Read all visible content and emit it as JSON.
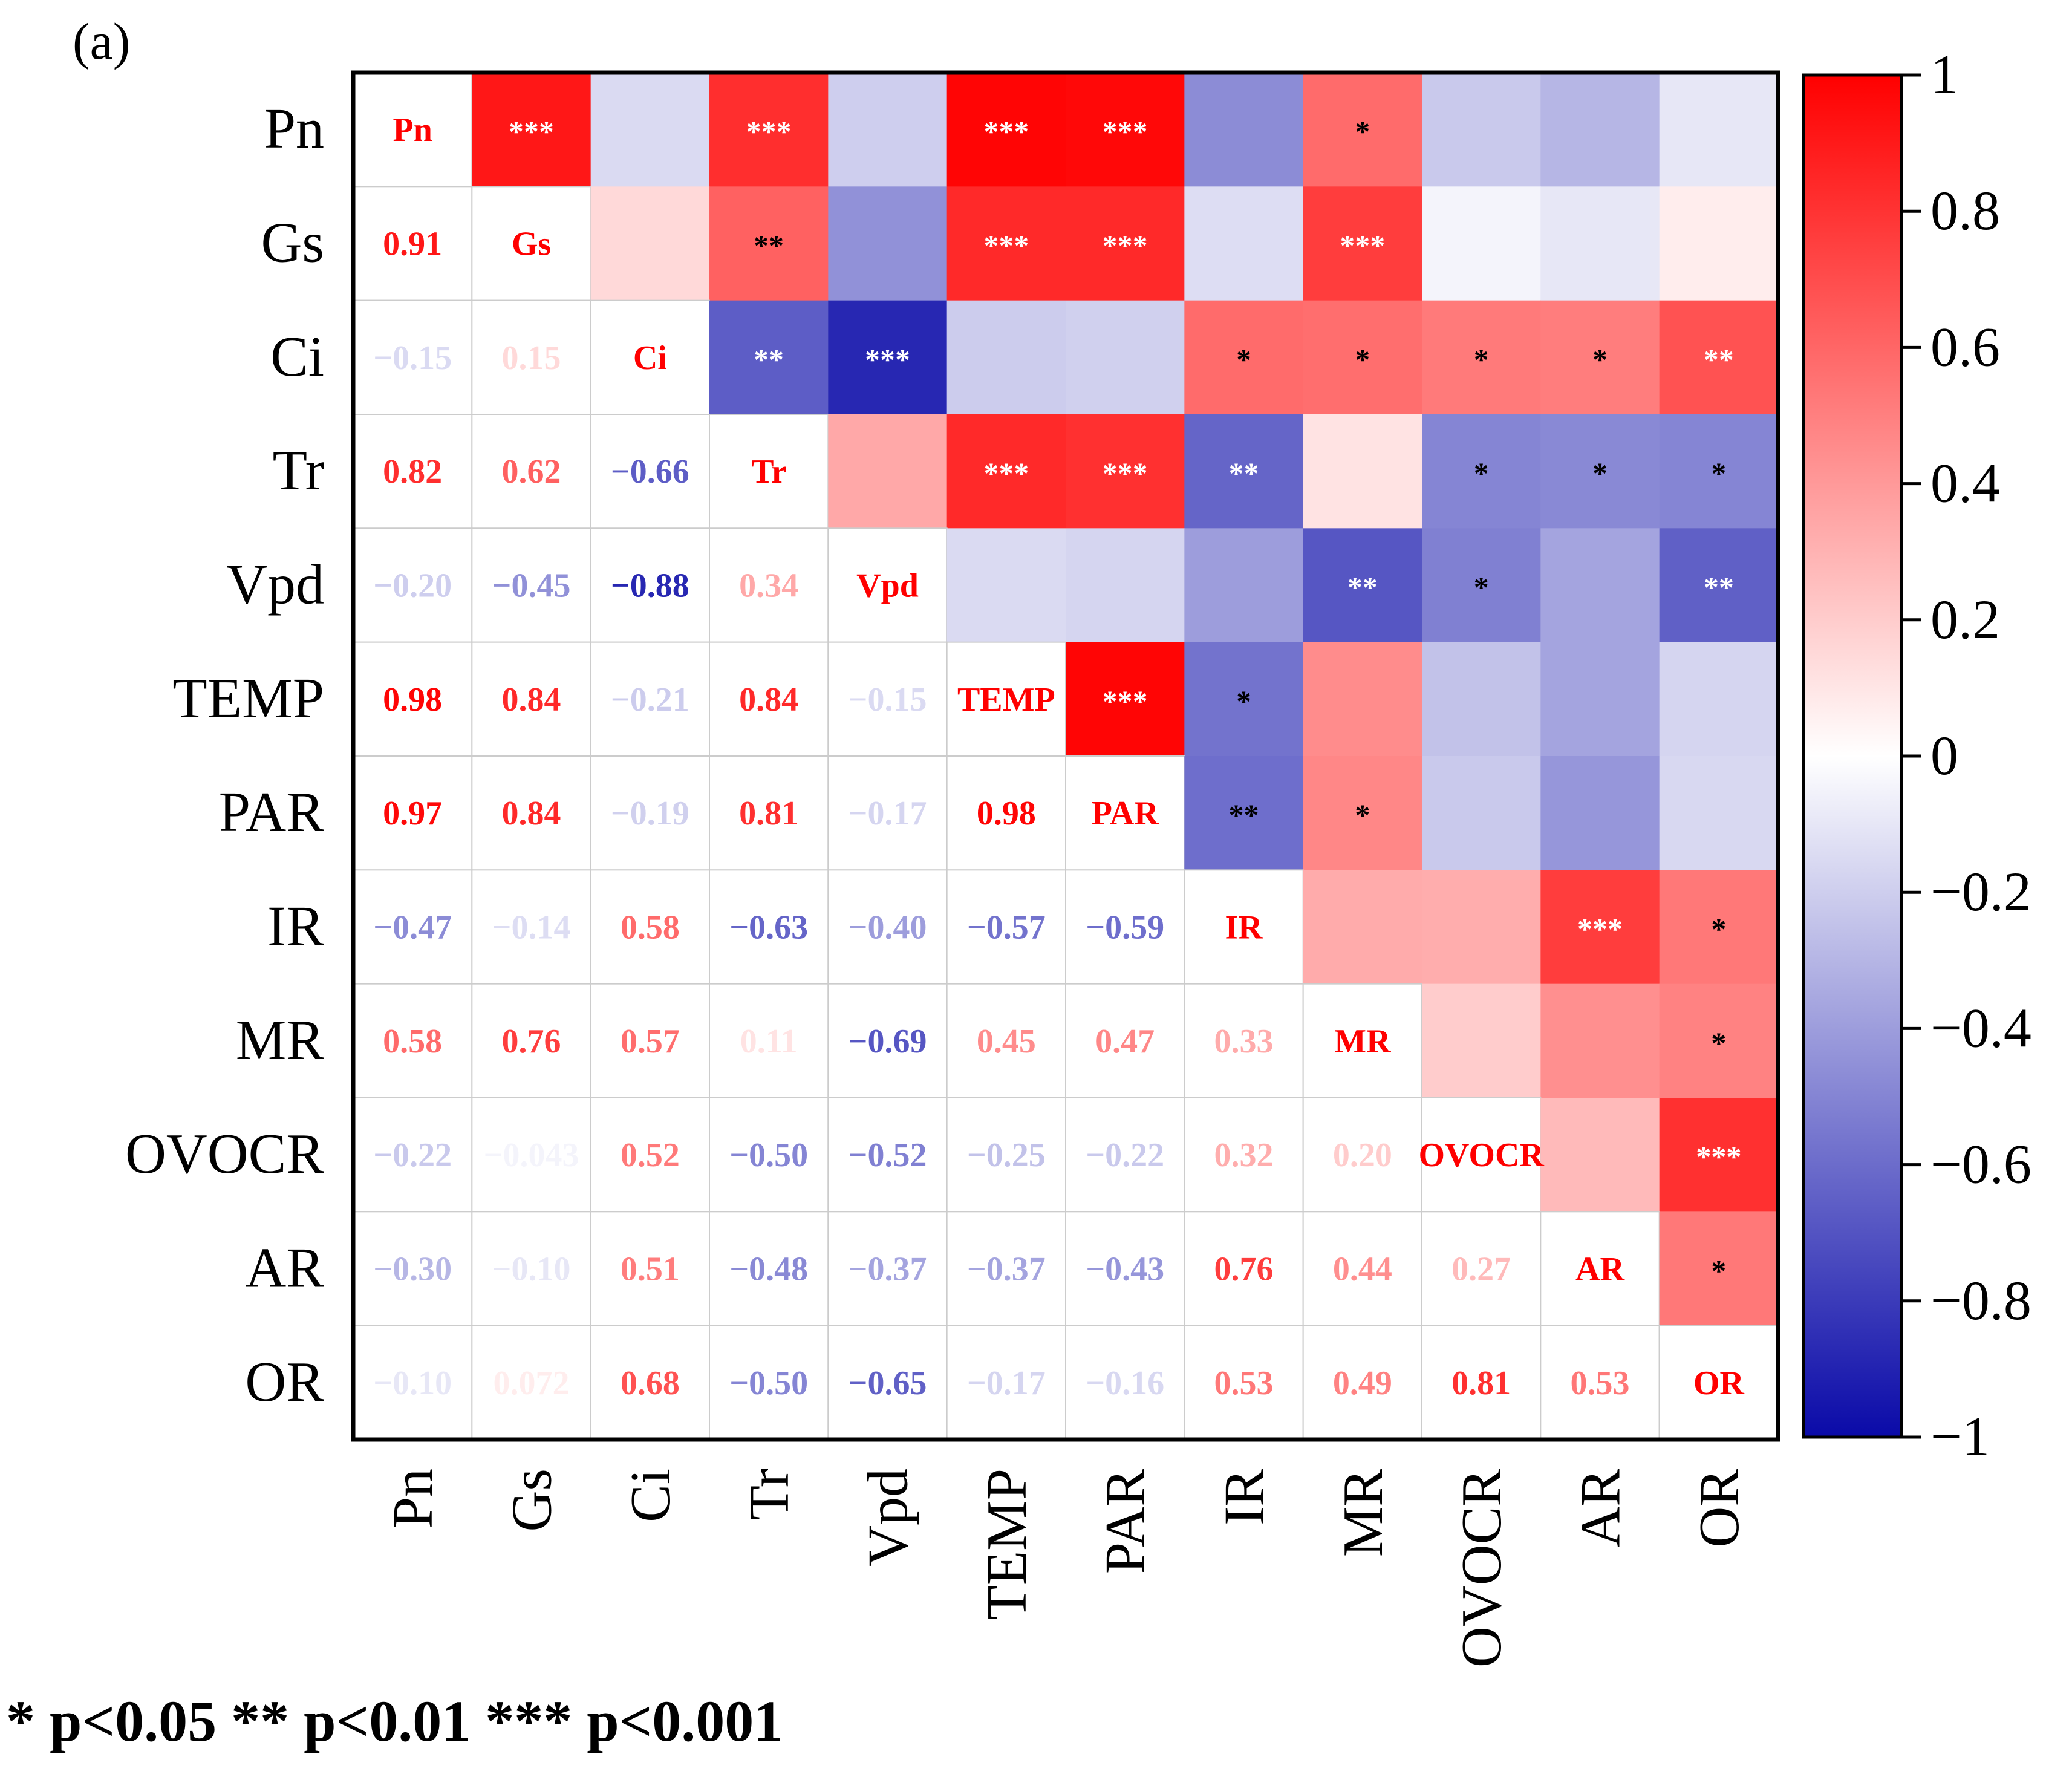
{
  "panel_label": "(a)",
  "footnote": "* p<0.05  ** p<0.01  *** p<0.001",
  "colors": {
    "negative": "#0a0aa8",
    "zero": "#ffffff",
    "positive": "#ff0000"
  },
  "chart_data": {
    "type": "heatmap",
    "title": "",
    "variables": [
      "Pn",
      "Gs",
      "Ci",
      "Tr",
      "Vpd",
      "TEMP",
      "PAR",
      "IR",
      "MR",
      "OVOCR",
      "AR",
      "OR"
    ],
    "lower_triangle_labels": [
      [],
      [
        "0.91"
      ],
      [
        "−0.15",
        "0.15"
      ],
      [
        "0.82",
        "0.62",
        "−0.66"
      ],
      [
        "−0.20",
        "−0.45",
        "−0.88",
        "0.34"
      ],
      [
        "0.98",
        "0.84",
        "−0.21",
        "0.84",
        "−0.15"
      ],
      [
        "0.97",
        "0.84",
        "−0.19",
        "0.81",
        "−0.17",
        "0.98"
      ],
      [
        "−0.47",
        "−0.14",
        "0.58",
        "−0.63",
        "−0.40",
        "−0.57",
        "−0.59"
      ],
      [
        "0.58",
        "0.76",
        "0.57",
        "0.11",
        "−0.69",
        "0.45",
        "0.47",
        "0.33"
      ],
      [
        "−0.22",
        "−0.043",
        "0.52",
        "−0.50",
        "−0.52",
        "−0.25",
        "−0.22",
        "0.32",
        "0.20"
      ],
      [
        "−0.30",
        "−0.10",
        "0.51",
        "−0.48",
        "−0.37",
        "−0.37",
        "−0.43",
        "0.76",
        "0.44",
        "0.27"
      ],
      [
        "−0.10",
        "0.072",
        "0.68",
        "−0.50",
        "−0.65",
        "−0.17",
        "−0.16",
        "0.53",
        "0.49",
        "0.81",
        "0.53"
      ]
    ],
    "upper_triangle_significance": [
      [
        "",
        "***",
        "",
        "***",
        "",
        "***",
        "***",
        "",
        "*",
        "",
        "",
        ""
      ],
      [
        "",
        "",
        "",
        "**",
        "",
        "***",
        "***",
        "",
        "***",
        "",
        "",
        ""
      ],
      [
        "",
        "",
        "",
        "**",
        "***",
        "",
        "",
        "*",
        "*",
        "*",
        "*",
        "**"
      ],
      [
        "",
        "",
        "",
        "",
        "",
        "***",
        "***",
        "**",
        "",
        "*",
        "*",
        "*"
      ],
      [
        "",
        "",
        "",
        "",
        "",
        "",
        "",
        "",
        "**",
        "*",
        "",
        "**"
      ],
      [
        "",
        "",
        "",
        "",
        "",
        "",
        "***",
        "*",
        "",
        "",
        "",
        ""
      ],
      [
        "",
        "",
        "",
        "",
        "",
        "",
        "",
        "**",
        "*",
        "",
        "",
        ""
      ],
      [
        "",
        "",
        "",
        "",
        "",
        "",
        "",
        "",
        "",
        "",
        "***",
        "*"
      ],
      [
        "",
        "",
        "",
        "",
        "",
        "",
        "",
        "",
        "",
        "",
        "",
        "*"
      ],
      [
        "",
        "",
        "",
        "",
        "",
        "",
        "",
        "",
        "",
        "",
        "",
        "***"
      ],
      [
        "",
        "",
        "",
        "",
        "",
        "",
        "",
        "",
        "",
        "",
        "",
        "*"
      ],
      [
        "",
        "",
        "",
        "",
        "",
        "",
        "",
        "",
        "",
        "",
        "",
        ""
      ]
    ],
    "colorbar": {
      "range": [
        -1,
        1
      ],
      "tick_values": [
        1,
        0.8,
        0.6,
        0.4,
        0.2,
        0,
        -0.2,
        -0.4,
        -0.6,
        -0.8,
        -1
      ],
      "tick_labels": [
        "1",
        "0.8",
        "0.6",
        "0.4",
        "0.2",
        "0",
        "−0.2",
        "−0.4",
        "−0.6",
        "−0.8",
        "−1"
      ]
    }
  }
}
